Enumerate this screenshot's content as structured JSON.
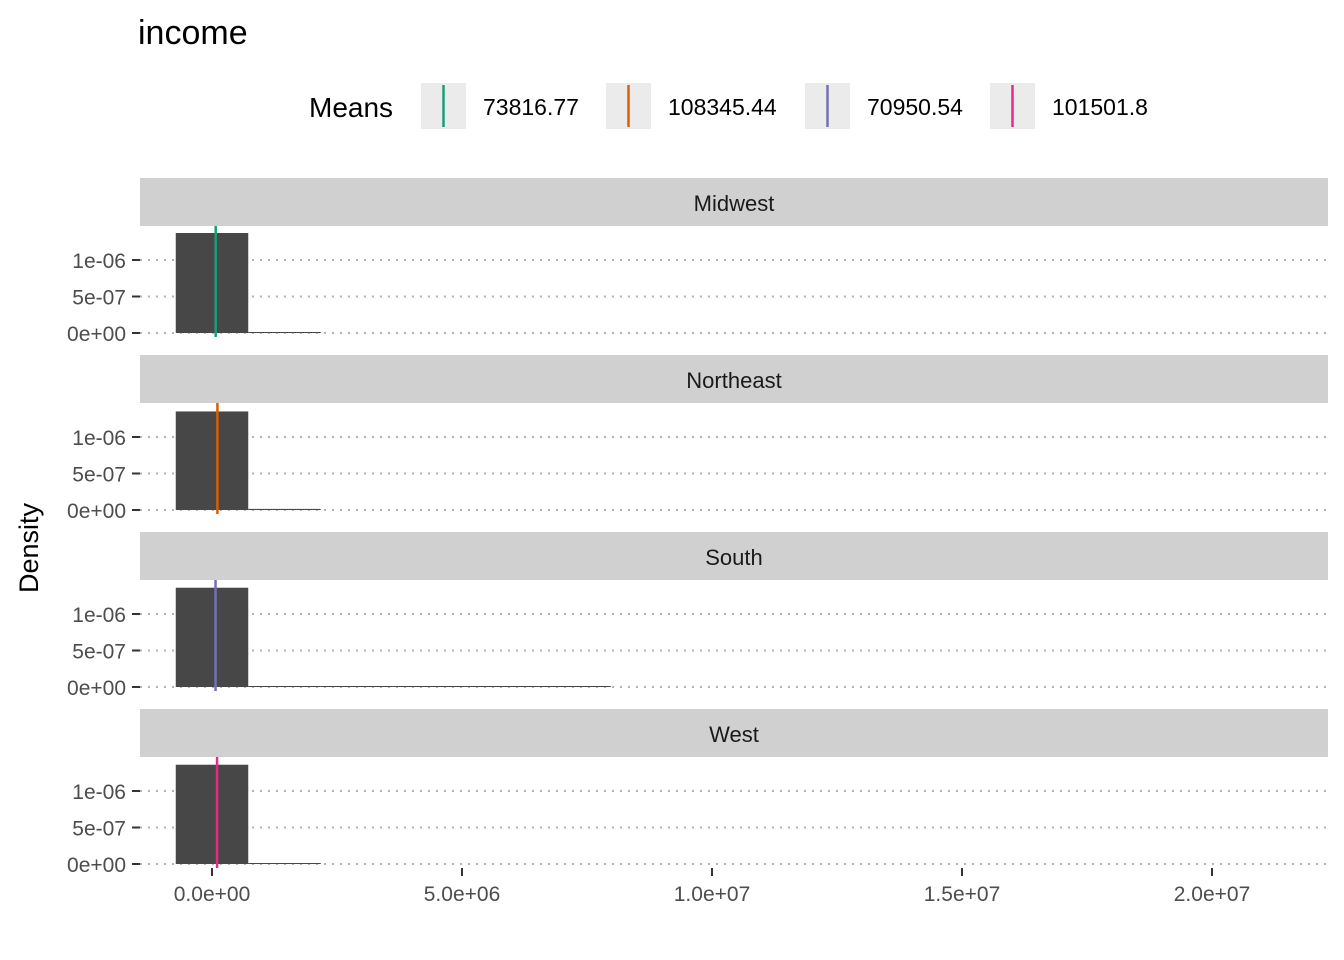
{
  "chart_data": {
    "type": "bar",
    "title": "income",
    "ylabel": "Density",
    "xlabel": "",
    "xlim": [
      -1500000,
      22200000
    ],
    "ylim": [
      0,
      1.45e-06
    ],
    "bin_width": 1450000,
    "x_ticks": [
      0,
      5000000,
      10000000,
      15000000,
      20000000
    ],
    "x_tick_labels": [
      "0.0e+00",
      "5.0e+06",
      "1.0e+07",
      "1.5e+07",
      "2.0e+07"
    ],
    "y_ticks": [
      0,
      5e-07,
      1e-06
    ],
    "y_tick_labels": [
      "0e+00",
      "5e-07",
      "1e-06"
    ],
    "grid": true,
    "legend": {
      "title": "Means",
      "position": "top",
      "items": [
        {
          "label": "73816.77",
          "color": "#1b9e77"
        },
        {
          "label": "108345.44",
          "color": "#d95f02"
        },
        {
          "label": "70950.54",
          "color": "#7570b3"
        },
        {
          "label": "101501.8",
          "color": "#e7298a"
        }
      ]
    },
    "panels": [
      {
        "name": "Midwest",
        "mean": 73816.77,
        "mean_color": "#1b9e77",
        "bins": [
          {
            "x": 0,
            "density": 1.37e-06
          },
          {
            "x": 1450000,
            "density": 2e-09
          }
        ]
      },
      {
        "name": "Northeast",
        "mean": 108345.44,
        "mean_color": "#d95f02",
        "bins": [
          {
            "x": 0,
            "density": 1.35e-06
          },
          {
            "x": 1450000,
            "density": 1.5e-08
          }
        ]
      },
      {
        "name": "South",
        "mean": 70950.54,
        "mean_color": "#7570b3",
        "bins": [
          {
            "x": 0,
            "density": 1.36e-06
          },
          {
            "x": 1450000,
            "density": 3e-09
          },
          {
            "x": 2900000,
            "density": 1e-09
          },
          {
            "x": 4350000,
            "density": 1e-09
          },
          {
            "x": 5800000,
            "density": 1e-09
          },
          {
            "x": 7250000,
            "density": 1e-09
          }
        ]
      },
      {
        "name": "West",
        "mean": 101501.8,
        "mean_color": "#e7298a",
        "bins": [
          {
            "x": 0,
            "density": 1.36e-06
          },
          {
            "x": 1450000,
            "density": 5e-09
          }
        ]
      }
    ]
  }
}
